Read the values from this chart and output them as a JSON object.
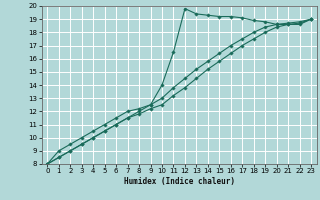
{
  "title": "",
  "xlabel": "Humidex (Indice chaleur)",
  "ylabel": "",
  "bg_color": "#b2d8d8",
  "grid_color": "#ffffff",
  "line_color": "#1a6b5a",
  "xlim": [
    -0.5,
    23.5
  ],
  "ylim": [
    8,
    20
  ],
  "xticks": [
    0,
    1,
    2,
    3,
    4,
    5,
    6,
    7,
    8,
    9,
    10,
    11,
    12,
    13,
    14,
    15,
    16,
    17,
    18,
    19,
    20,
    21,
    22,
    23
  ],
  "yticks": [
    8,
    9,
    10,
    11,
    12,
    13,
    14,
    15,
    16,
    17,
    18,
    19,
    20
  ],
  "series": [
    {
      "x": [
        0,
        1,
        2,
        3,
        4,
        5,
        6,
        7,
        8,
        9,
        10,
        11,
        12,
        13,
        14,
        15,
        16,
        17,
        18,
        19,
        20,
        21,
        22,
        23
      ],
      "y": [
        8,
        9,
        9.5,
        10,
        10.5,
        11,
        11.5,
        12,
        12.2,
        12.5,
        14,
        16.5,
        19.8,
        19.4,
        19.3,
        19.2,
        19.2,
        19.1,
        18.9,
        18.8,
        18.6,
        18.6,
        18.6,
        19.0
      ]
    },
    {
      "x": [
        0,
        1,
        2,
        3,
        4,
        5,
        6,
        7,
        8,
        9,
        10,
        11,
        12,
        13,
        14,
        15,
        16,
        17,
        18,
        19,
        20,
        21,
        22,
        23
      ],
      "y": [
        8,
        8.5,
        9,
        9.5,
        10,
        10.5,
        11,
        11.5,
        11.8,
        12.2,
        12.5,
        13.2,
        13.8,
        14.5,
        15.2,
        15.8,
        16.4,
        17.0,
        17.5,
        18.0,
        18.4,
        18.6,
        18.7,
        19.0
      ]
    },
    {
      "x": [
        0,
        1,
        2,
        3,
        4,
        5,
        6,
        7,
        8,
        9,
        10,
        11,
        12,
        13,
        14,
        15,
        16,
        17,
        18,
        19,
        20,
        21,
        22,
        23
      ],
      "y": [
        8,
        8.5,
        9,
        9.5,
        10,
        10.5,
        11,
        11.5,
        12,
        12.5,
        13,
        13.8,
        14.5,
        15.2,
        15.8,
        16.4,
        17.0,
        17.5,
        18.0,
        18.4,
        18.6,
        18.7,
        18.8,
        19.0
      ]
    }
  ]
}
